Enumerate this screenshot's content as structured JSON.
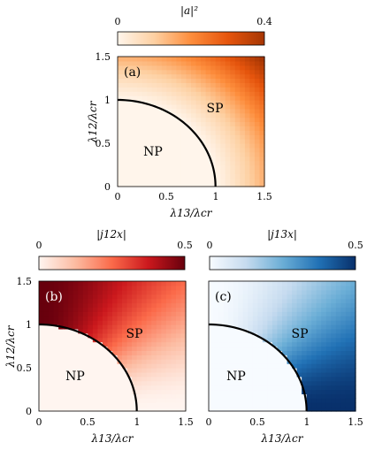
{
  "chart_data": [
    {
      "type": "heatmap",
      "panel_label": "(a)",
      "colorbar_title": "|a|²",
      "colorbar_ticks": [
        "0",
        "0.4"
      ],
      "clim": [
        0,
        0.4
      ],
      "colormap": [
        "#fff5eb",
        "#fdd0a2",
        "#fd8d3c",
        "#e6550d",
        "#a63603"
      ],
      "xlabel": "λ13/λcr",
      "ylabel": "λ12/λcr",
      "xlim": [
        0,
        1.5
      ],
      "ylim": [
        0,
        1.5
      ],
      "xticks": [
        "0",
        "0.5",
        "1",
        "1.5"
      ],
      "yticks": [
        "0",
        "0.5",
        "1",
        "1.5"
      ],
      "region_labels": [
        "NP",
        "SP"
      ],
      "boundary": "unit circle (λ12/λcr)² + (λ13/λcr)² = 1",
      "field": "|a|² ≈ 0.12·(r² − 1) for r > 1, else 0"
    },
    {
      "type": "heatmap",
      "panel_label": "(b)",
      "colorbar_title": "|j12x|",
      "colorbar_ticks": [
        "0",
        "0.5"
      ],
      "clim": [
        0,
        0.5
      ],
      "colormap": [
        "#fff5f0",
        "#fcbba1",
        "#fb6a4a",
        "#cb181d",
        "#67000d"
      ],
      "xlabel": "λ13/λcr",
      "ylabel": "λ12/λcr",
      "xlim": [
        0,
        1.5
      ],
      "ylim": [
        0,
        1.5
      ],
      "xticks": [
        "0",
        "0.5",
        "1",
        "1.5"
      ],
      "yticks": [
        "0",
        "0.5",
        "1",
        "1.5"
      ],
      "region_labels": [
        "NP",
        "SP"
      ],
      "boundary": "unit circle",
      "field": "|j12x| ≈ 0.5·λ12²/r² for r > 1, else 0"
    },
    {
      "type": "heatmap",
      "panel_label": "(c)",
      "colorbar_title": "|j13x|",
      "colorbar_ticks": [
        "0",
        "0.5"
      ],
      "clim": [
        0,
        0.5
      ],
      "colormap": [
        "#f7fbff",
        "#c6dbef",
        "#6baed6",
        "#2171b5",
        "#08306b"
      ],
      "xlabel": "λ13/λcr",
      "ylabel": "λ12/λcr",
      "xlim": [
        0,
        1.5
      ],
      "ylim": [
        0,
        1.5
      ],
      "xticks": [
        "0",
        "0.5",
        "1",
        "1.5"
      ],
      "yticks": [
        "0",
        "0.5",
        "1",
        "1.5"
      ],
      "region_labels": [
        "NP",
        "SP"
      ],
      "boundary": "unit circle",
      "field": "|j13x| ≈ 0.5·λ13²/r² for r > 1, else 0"
    }
  ]
}
